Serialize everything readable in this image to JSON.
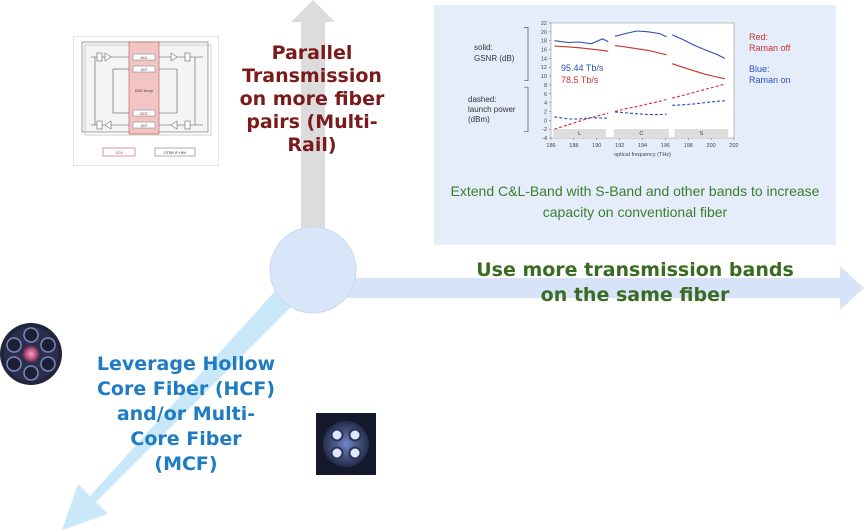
{
  "labels": {
    "parallel": "Parallel Transmission on more fiber pairs (Multi-Rail)",
    "bands": "Use more transmission bands on the same fiber",
    "hcf": "Leverage Hollow Core Fiber (HCF) and/or Multi-Core Fiber (MCF)"
  },
  "panel": {
    "caption": "Extend C&L-Band with S-Band and other bands to increase capacity on conventional fiber"
  },
  "schematic": {
    "center_label": "DGE Array",
    "top_box_1": "AUL",
    "top_box_2": "SCF",
    "bottom_box_1": "DCE",
    "bottom_box_2": "SCF",
    "footer_left": "OCV",
    "footer_right": "OTDR IF+NH"
  },
  "chart_data": {
    "type": "line",
    "title": "",
    "xlabel": "optical frequency (THz)",
    "ylabel": "",
    "xlim": [
      186,
      202
    ],
    "ylim": [
      -4,
      22
    ],
    "xticks": [
      186,
      188,
      190,
      192,
      194,
      196,
      198,
      200,
      202
    ],
    "yticks": [
      22,
      20,
      18,
      16,
      14,
      12,
      10,
      8,
      6,
      4,
      2,
      0,
      -2,
      -4
    ],
    "left_annotations": {
      "solid": "solid:",
      "solid_metric": "GSNR (dB)",
      "dashed": "dashed:",
      "dashed_metric_1": "launch power",
      "dashed_metric_2": "(dBm)"
    },
    "legend": {
      "red_title": "Red:",
      "red_label": "Raman off",
      "blue_title": "Blue:",
      "blue_label": "Raman on"
    },
    "capacity_blue": "95.44 Tb/s",
    "capacity_red": "78.5 Tb/s",
    "bands": [
      {
        "name": "L",
        "start": 186.2,
        "end": 190.8
      },
      {
        "name": "C",
        "start": 191.5,
        "end": 196.3
      },
      {
        "name": "S",
        "start": 196.8,
        "end": 201.5
      }
    ],
    "series": [
      {
        "name": "GSNR Raman on",
        "color": "#2d4fb5",
        "dash": false,
        "segments": [
          [
            [
              186.3,
              18.0
            ],
            [
              187.5,
              17.6
            ],
            [
              188.5,
              17.7
            ],
            [
              189.5,
              17.3
            ],
            [
              190.5,
              18.4
            ],
            [
              191.0,
              17.8
            ]
          ],
          [
            [
              191.6,
              19.0
            ],
            [
              192.5,
              19.6
            ],
            [
              193.5,
              20.2
            ],
            [
              194.5,
              20.0
            ],
            [
              195.5,
              19.6
            ],
            [
              196.1,
              18.9
            ]
          ],
          [
            [
              196.6,
              19.3
            ],
            [
              197.5,
              18.3
            ],
            [
              198.5,
              17.0
            ],
            [
              199.5,
              15.9
            ],
            [
              200.5,
              14.9
            ],
            [
              201.2,
              14.0
            ]
          ]
        ]
      },
      {
        "name": "GSNR Raman off",
        "color": "#c8312f",
        "dash": false,
        "segments": [
          [
            [
              186.3,
              16.8
            ],
            [
              187.5,
              16.6
            ],
            [
              188.5,
              16.4
            ],
            [
              189.5,
              16.1
            ],
            [
              190.5,
              15.8
            ],
            [
              191.0,
              15.6
            ]
          ],
          [
            [
              191.6,
              16.9
            ],
            [
              192.5,
              16.6
            ],
            [
              193.5,
              16.2
            ],
            [
              194.5,
              15.8
            ],
            [
              195.5,
              15.2
            ],
            [
              196.1,
              14.8
            ]
          ],
          [
            [
              196.6,
              12.8
            ],
            [
              197.5,
              12.0
            ],
            [
              198.5,
              11.2
            ],
            [
              199.5,
              10.4
            ],
            [
              200.5,
              9.8
            ],
            [
              201.2,
              9.4
            ]
          ]
        ]
      },
      {
        "name": "launch power Raman off",
        "color": "#c8312f",
        "dash": true,
        "segments": [
          [
            [
              186.3,
              -2.0
            ],
            [
              187.5,
              -1.0
            ],
            [
              188.5,
              -0.2
            ],
            [
              189.5,
              0.6
            ],
            [
              190.5,
              1.3
            ],
            [
              191.0,
              1.6
            ]
          ],
          [
            [
              191.6,
              2.0
            ],
            [
              192.5,
              2.6
            ],
            [
              193.5,
              3.1
            ],
            [
              194.5,
              3.7
            ],
            [
              195.5,
              4.3
            ],
            [
              196.1,
              4.7
            ]
          ],
          [
            [
              196.6,
              5.0
            ],
            [
              197.5,
              5.6
            ],
            [
              198.5,
              6.3
            ],
            [
              199.5,
              7.0
            ],
            [
              200.5,
              7.7
            ],
            [
              201.2,
              8.2
            ]
          ]
        ]
      },
      {
        "name": "launch power Raman on",
        "color": "#2d4fb5",
        "dash": true,
        "segments": [
          [
            [
              186.3,
              0.8
            ],
            [
              187.5,
              0.3
            ],
            [
              188.5,
              0.3
            ],
            [
              189.5,
              0.6
            ],
            [
              190.5,
              0.5
            ],
            [
              191.0,
              0.5
            ]
          ],
          [
            [
              191.6,
              1.9
            ],
            [
              192.5,
              1.7
            ],
            [
              193.5,
              1.5
            ],
            [
              194.5,
              1.3
            ],
            [
              195.5,
              1.3
            ],
            [
              196.1,
              1.4
            ]
          ],
          [
            [
              196.6,
              3.4
            ],
            [
              197.5,
              3.5
            ],
            [
              198.5,
              3.7
            ],
            [
              199.5,
              4.0
            ],
            [
              200.5,
              4.3
            ],
            [
              201.2,
              4.4
            ]
          ]
        ]
      }
    ]
  },
  "colors": {
    "parallel_text": "#7a1a1a",
    "bands_text": "#3a6b23",
    "hcf_text": "#1f7cc2",
    "panel_bg": "#e5edfb",
    "arrow_horizontal": "#d7e3f8",
    "arrow_vertical": "#dcdcdc",
    "arrow_diagonal": "#c9e8f9"
  }
}
